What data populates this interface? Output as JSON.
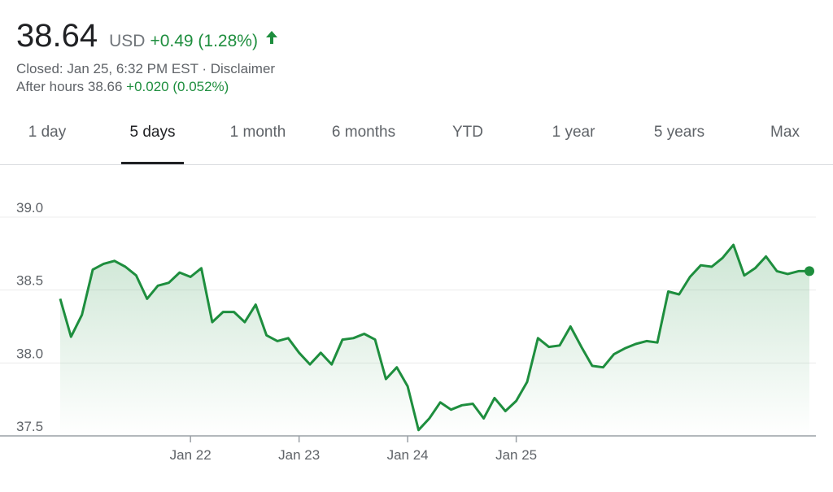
{
  "quote": {
    "price": "38.64",
    "currency": "USD",
    "change": "+0.49 (1.28%)",
    "status_line": "Closed: Jan 25, 6:32 PM EST · Disclaimer",
    "after_hours_label": "After hours 38.66",
    "after_hours_change": "+0.020 (0.052%)",
    "positive_color": "#1e8e3e",
    "arrow_icon": "arrow-up-icon"
  },
  "tabs": [
    {
      "label": "1 day"
    },
    {
      "label": "5 days",
      "active": true
    },
    {
      "label": "1 month"
    },
    {
      "label": "6 months"
    },
    {
      "label": "YTD"
    },
    {
      "label": "1 year"
    },
    {
      "label": "5 years"
    },
    {
      "label": "Max"
    }
  ],
  "chart_data": {
    "type": "area",
    "line_color": "#1e8e3e",
    "ylim": [
      37.5,
      39.0
    ],
    "y_ticks": [
      {
        "value": 39.0,
        "label": "39.0"
      },
      {
        "value": 38.5,
        "label": "38.5"
      },
      {
        "value": 38.0,
        "label": "38.0"
      },
      {
        "value": 37.5,
        "label": "37.5"
      }
    ],
    "x_ticks": [
      {
        "index": 12,
        "label": "Jan 22"
      },
      {
        "index": 22,
        "label": "Jan 23"
      },
      {
        "index": 32,
        "label": "Jan 24"
      },
      {
        "index": 42,
        "label": "Jan 25"
      }
    ],
    "grid": true,
    "values": [
      38.44,
      38.18,
      38.33,
      38.64,
      38.68,
      38.7,
      38.66,
      38.6,
      38.44,
      38.53,
      38.55,
      38.62,
      38.59,
      38.65,
      38.28,
      38.35,
      38.35,
      38.28,
      38.4,
      38.19,
      38.15,
      38.17,
      38.07,
      37.99,
      38.07,
      37.99,
      38.16,
      38.17,
      38.2,
      38.16,
      37.89,
      37.97,
      37.84,
      37.54,
      37.62,
      37.73,
      37.68,
      37.71,
      37.72,
      37.62,
      37.76,
      37.67,
      37.74,
      37.87,
      38.17,
      38.11,
      38.12,
      38.25,
      38.11,
      37.98,
      37.97,
      38.06,
      38.1,
      38.13,
      38.15,
      38.14,
      38.49,
      38.47,
      38.59,
      38.67,
      38.66,
      38.72,
      38.81,
      38.6,
      38.65,
      38.73,
      38.63,
      38.61,
      38.63,
      38.63
    ]
  }
}
